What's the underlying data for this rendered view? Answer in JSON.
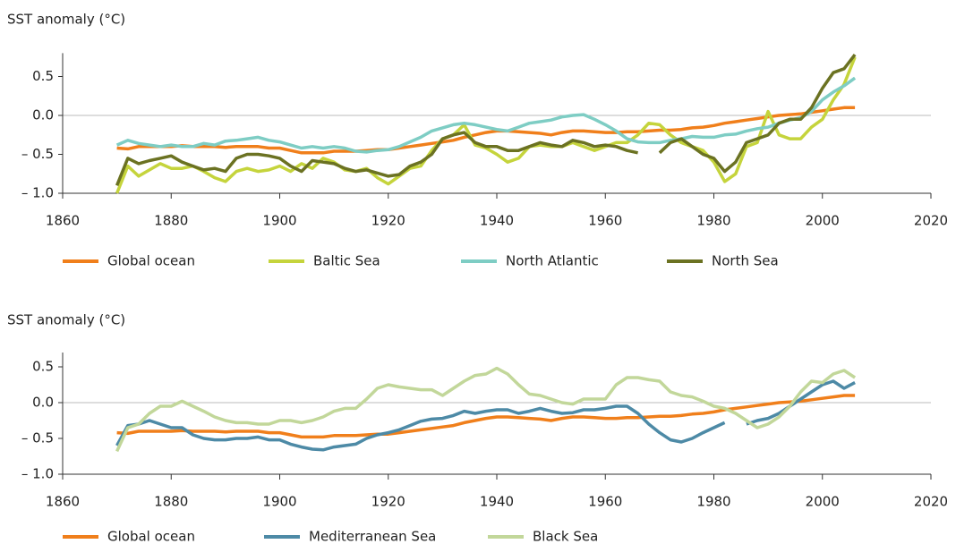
{
  "chart_data": [
    {
      "type": "line",
      "y_label": "SST anomaly (°C)",
      "x": [
        1870,
        1872,
        1874,
        1876,
        1878,
        1880,
        1882,
        1884,
        1886,
        1888,
        1890,
        1892,
        1894,
        1896,
        1898,
        1900,
        1902,
        1904,
        1906,
        1908,
        1910,
        1912,
        1914,
        1916,
        1918,
        1920,
        1922,
        1924,
        1926,
        1928,
        1930,
        1932,
        1934,
        1936,
        1938,
        1940,
        1942,
        1944,
        1946,
        1948,
        1950,
        1952,
        1954,
        1956,
        1958,
        1960,
        1962,
        1964,
        1966,
        1968,
        1970,
        1972,
        1974,
        1976,
        1978,
        1980,
        1982,
        1984,
        1986,
        1988,
        1990,
        1992,
        1994,
        1996,
        1998,
        2000,
        2002,
        2004,
        2006
      ],
      "xlim": [
        1860,
        2020
      ],
      "xticks": [
        1860,
        1880,
        1900,
        1920,
        1940,
        1960,
        1980,
        2000,
        2020
      ],
      "ylim": [
        -1,
        0.8
      ],
      "yticks": [
        {
          "value": -1,
          "label": "– 1.0"
        },
        {
          "value": -0.5,
          "label": "– 0.5"
        },
        {
          "value": 0,
          "label": "0.0"
        },
        0.5
      ],
      "zero_line": true,
      "series": [
        {
          "name": "Global ocean",
          "color": "#f07f1b",
          "values": [
            -0.42,
            -0.43,
            -0.4,
            -0.4,
            -0.4,
            -0.4,
            -0.39,
            -0.4,
            -0.4,
            -0.4,
            -0.41,
            -0.4,
            -0.4,
            -0.4,
            -0.42,
            -0.42,
            -0.45,
            -0.48,
            -0.48,
            -0.48,
            -0.46,
            -0.46,
            -0.46,
            -0.45,
            -0.44,
            -0.44,
            -0.42,
            -0.4,
            -0.38,
            -0.36,
            -0.34,
            -0.32,
            -0.28,
            -0.25,
            -0.22,
            -0.2,
            -0.2,
            -0.21,
            -0.22,
            -0.23,
            -0.25,
            -0.22,
            -0.2,
            -0.2,
            -0.21,
            -0.22,
            -0.22,
            -0.21,
            -0.21,
            -0.2,
            -0.19,
            -0.19,
            -0.18,
            -0.16,
            -0.15,
            -0.13,
            -0.1,
            -0.08,
            -0.06,
            -0.04,
            -0.02,
            0.0,
            0.01,
            0.02,
            0.04,
            0.06,
            0.08,
            0.1,
            0.1
          ]
        },
        {
          "name": "Baltic Sea",
          "color": "#c5d43c",
          "values": [
            -1.0,
            -0.65,
            -0.78,
            -0.7,
            -0.62,
            -0.68,
            -0.68,
            -0.65,
            -0.72,
            -0.8,
            -0.85,
            -0.72,
            -0.68,
            -0.72,
            -0.7,
            -0.65,
            -0.72,
            -0.62,
            -0.68,
            -0.55,
            -0.6,
            -0.7,
            -0.72,
            -0.68,
            -0.8,
            -0.88,
            -0.78,
            -0.68,
            -0.65,
            -0.45,
            -0.3,
            -0.25,
            -0.12,
            -0.38,
            -0.42,
            -0.5,
            -0.6,
            -0.55,
            -0.4,
            -0.38,
            -0.4,
            -0.4,
            -0.35,
            -0.4,
            -0.45,
            -0.4,
            -0.35,
            -0.35,
            -0.25,
            -0.1,
            -0.12,
            -0.25,
            -0.35,
            -0.4,
            -0.45,
            -0.6,
            -0.85,
            -0.75,
            -0.4,
            -0.35,
            0.05,
            -0.25,
            -0.3,
            -0.3,
            -0.15,
            -0.05,
            0.2,
            0.4,
            0.75
          ]
        },
        {
          "name": "North Atlantic",
          "color": "#7ecdc4",
          "values": [
            -0.38,
            -0.32,
            -0.36,
            -0.38,
            -0.4,
            -0.38,
            -0.4,
            -0.4,
            -0.36,
            -0.38,
            -0.33,
            -0.32,
            -0.3,
            -0.28,
            -0.32,
            -0.34,
            -0.38,
            -0.42,
            -0.4,
            -0.42,
            -0.4,
            -0.42,
            -0.46,
            -0.47,
            -0.45,
            -0.44,
            -0.4,
            -0.34,
            -0.28,
            -0.2,
            -0.16,
            -0.12,
            -0.1,
            -0.12,
            -0.15,
            -0.18,
            -0.2,
            -0.15,
            -0.1,
            -0.08,
            -0.06,
            -0.02,
            0.0,
            0.01,
            -0.05,
            -0.12,
            -0.2,
            -0.3,
            -0.34,
            -0.35,
            -0.35,
            -0.32,
            -0.3,
            -0.27,
            -0.28,
            -0.28,
            -0.25,
            -0.24,
            -0.2,
            -0.17,
            -0.15,
            -0.1,
            -0.06,
            -0.03,
            0.05,
            0.2,
            0.3,
            0.38,
            0.48
          ]
        },
        {
          "name": "North Sea",
          "color": "#6b7222",
          "values": [
            -0.9,
            -0.55,
            -0.62,
            -0.58,
            -0.55,
            -0.52,
            -0.6,
            -0.65,
            -0.7,
            -0.68,
            -0.72,
            -0.55,
            -0.5,
            -0.5,
            -0.52,
            -0.55,
            -0.65,
            -0.72,
            -0.58,
            -0.6,
            -0.62,
            -0.68,
            -0.72,
            -0.7,
            -0.74,
            -0.78,
            -0.76,
            -0.65,
            -0.6,
            -0.5,
            -0.3,
            -0.25,
            -0.22,
            -0.35,
            -0.4,
            -0.4,
            -0.45,
            -0.45,
            -0.4,
            -0.35,
            -0.38,
            -0.4,
            -0.32,
            -0.35,
            -0.4,
            -0.38,
            -0.4,
            -0.45,
            -0.48,
            null,
            -0.48,
            -0.35,
            -0.3,
            -0.4,
            -0.5,
            -0.55,
            -0.72,
            -0.6,
            -0.35,
            -0.3,
            -0.25,
            -0.1,
            -0.05,
            -0.05,
            0.1,
            0.35,
            0.55,
            0.6,
            0.78
          ]
        }
      ]
    },
    {
      "type": "line",
      "y_label": "SST anomaly (°C)",
      "x": [
        1870,
        1872,
        1874,
        1876,
        1878,
        1880,
        1882,
        1884,
        1886,
        1888,
        1890,
        1892,
        1894,
        1896,
        1898,
        1900,
        1902,
        1904,
        1906,
        1908,
        1910,
        1912,
        1914,
        1916,
        1918,
        1920,
        1922,
        1924,
        1926,
        1928,
        1930,
        1932,
        1934,
        1936,
        1938,
        1940,
        1942,
        1944,
        1946,
        1948,
        1950,
        1952,
        1954,
        1956,
        1958,
        1960,
        1962,
        1964,
        1966,
        1968,
        1970,
        1972,
        1974,
        1976,
        1978,
        1980,
        1982,
        1984,
        1986,
        1988,
        1990,
        1992,
        1994,
        1996,
        1998,
        2000,
        2002,
        2004,
        2006
      ],
      "xlim": [
        1860,
        2020
      ],
      "xticks": [
        1860,
        1880,
        1900,
        1920,
        1940,
        1960,
        1980,
        2000,
        2020
      ],
      "ylim": [
        -1,
        0.7
      ],
      "yticks": [
        {
          "value": -1,
          "label": "– 1.0"
        },
        {
          "value": -0.5,
          "label": "– 0.5"
        },
        {
          "value": 0,
          "label": "0.0"
        },
        0.5
      ],
      "zero_line": true,
      "series": [
        {
          "name": "Global ocean",
          "color": "#f07f1b",
          "values": [
            -0.42,
            -0.43,
            -0.4,
            -0.4,
            -0.4,
            -0.4,
            -0.39,
            -0.4,
            -0.4,
            -0.4,
            -0.41,
            -0.4,
            -0.4,
            -0.4,
            -0.42,
            -0.42,
            -0.45,
            -0.48,
            -0.48,
            -0.48,
            -0.46,
            -0.46,
            -0.46,
            -0.45,
            -0.44,
            -0.44,
            -0.42,
            -0.4,
            -0.38,
            -0.36,
            -0.34,
            -0.32,
            -0.28,
            -0.25,
            -0.22,
            -0.2,
            -0.2,
            -0.21,
            -0.22,
            -0.23,
            -0.25,
            -0.22,
            -0.2,
            -0.2,
            -0.21,
            -0.22,
            -0.22,
            -0.21,
            -0.21,
            -0.2,
            -0.19,
            -0.19,
            -0.18,
            -0.16,
            -0.15,
            -0.13,
            -0.1,
            -0.08,
            -0.06,
            -0.04,
            -0.02,
            0.0,
            0.01,
            0.02,
            0.04,
            0.06,
            0.08,
            0.1,
            0.1
          ]
        },
        {
          "name": "Mediterranean Sea",
          "color": "#4d8aa6",
          "values": [
            -0.6,
            -0.32,
            -0.3,
            -0.25,
            -0.3,
            -0.35,
            -0.35,
            -0.45,
            -0.5,
            -0.52,
            -0.52,
            -0.5,
            -0.5,
            -0.48,
            -0.52,
            -0.52,
            -0.58,
            -0.62,
            -0.65,
            -0.66,
            -0.62,
            -0.6,
            -0.58,
            -0.5,
            -0.45,
            -0.42,
            -0.38,
            -0.32,
            -0.26,
            -0.23,
            -0.22,
            -0.18,
            -0.12,
            -0.15,
            -0.12,
            -0.1,
            -0.1,
            -0.15,
            -0.12,
            -0.08,
            -0.12,
            -0.15,
            -0.14,
            -0.1,
            -0.1,
            -0.08,
            -0.05,
            -0.05,
            -0.15,
            -0.3,
            -0.42,
            -0.52,
            -0.55,
            -0.5,
            -0.42,
            -0.35,
            -0.28,
            null,
            -0.3,
            -0.25,
            -0.22,
            -0.15,
            -0.05,
            0.05,
            0.15,
            0.25,
            0.3,
            0.2,
            0.28
          ]
        },
        {
          "name": "Black Sea",
          "color": "#c2d79a",
          "values": [
            -0.68,
            -0.35,
            -0.3,
            -0.15,
            -0.05,
            -0.05,
            0.02,
            -0.05,
            -0.12,
            -0.2,
            -0.25,
            -0.28,
            -0.28,
            -0.3,
            -0.3,
            -0.25,
            -0.25,
            -0.28,
            -0.25,
            -0.2,
            -0.12,
            -0.08,
            -0.08,
            0.05,
            0.2,
            0.25,
            0.22,
            0.2,
            0.18,
            0.18,
            0.1,
            0.2,
            0.3,
            0.38,
            0.4,
            0.48,
            0.4,
            0.25,
            0.12,
            0.1,
            0.05,
            0.0,
            -0.02,
            0.05,
            0.05,
            0.05,
            0.25,
            0.35,
            0.35,
            0.32,
            0.3,
            0.15,
            0.1,
            0.08,
            0.02,
            -0.05,
            -0.08,
            -0.15,
            -0.25,
            -0.35,
            -0.3,
            -0.2,
            -0.05,
            0.15,
            0.3,
            0.28,
            0.4,
            0.45,
            0.35
          ]
        }
      ]
    }
  ]
}
